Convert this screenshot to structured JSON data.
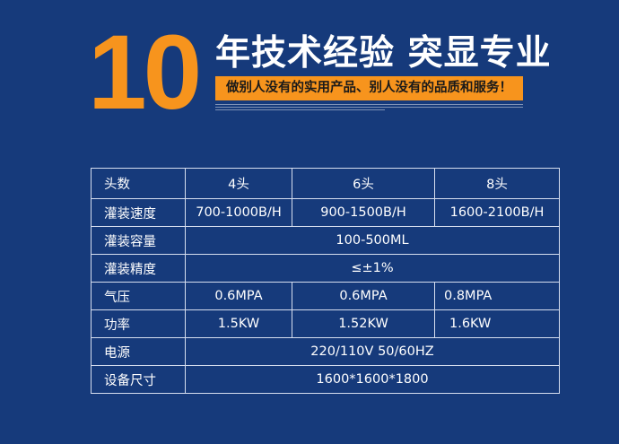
{
  "header": {
    "number": "10",
    "title": "年技术经验 突显专业",
    "slogan": "做别人没有的实用产品、别人没有的品质和服务！",
    "colors": {
      "background": "#163a7b",
      "accent": "#f7941d"
    }
  },
  "table": {
    "header": [
      "头数",
      "4头",
      "6头",
      "8头"
    ],
    "rows": [
      [
        "灌装速度",
        "700-1000B/H",
        "900-1500B/H",
        "1600-2100B/H"
      ],
      [
        "灌装容量",
        "100-500ML"
      ],
      [
        "灌装精度",
        "≤±1%"
      ],
      [
        "气压",
        "0.6MPA",
        "0.6MPA",
        "0.8MPA"
      ],
      [
        "功率",
        "1.5KW",
        "1.52KW",
        "1.6KW"
      ],
      [
        "电源",
        "220/110V 50/60HZ"
      ],
      [
        "设备尺寸",
        "1600*1600*1800"
      ]
    ]
  }
}
